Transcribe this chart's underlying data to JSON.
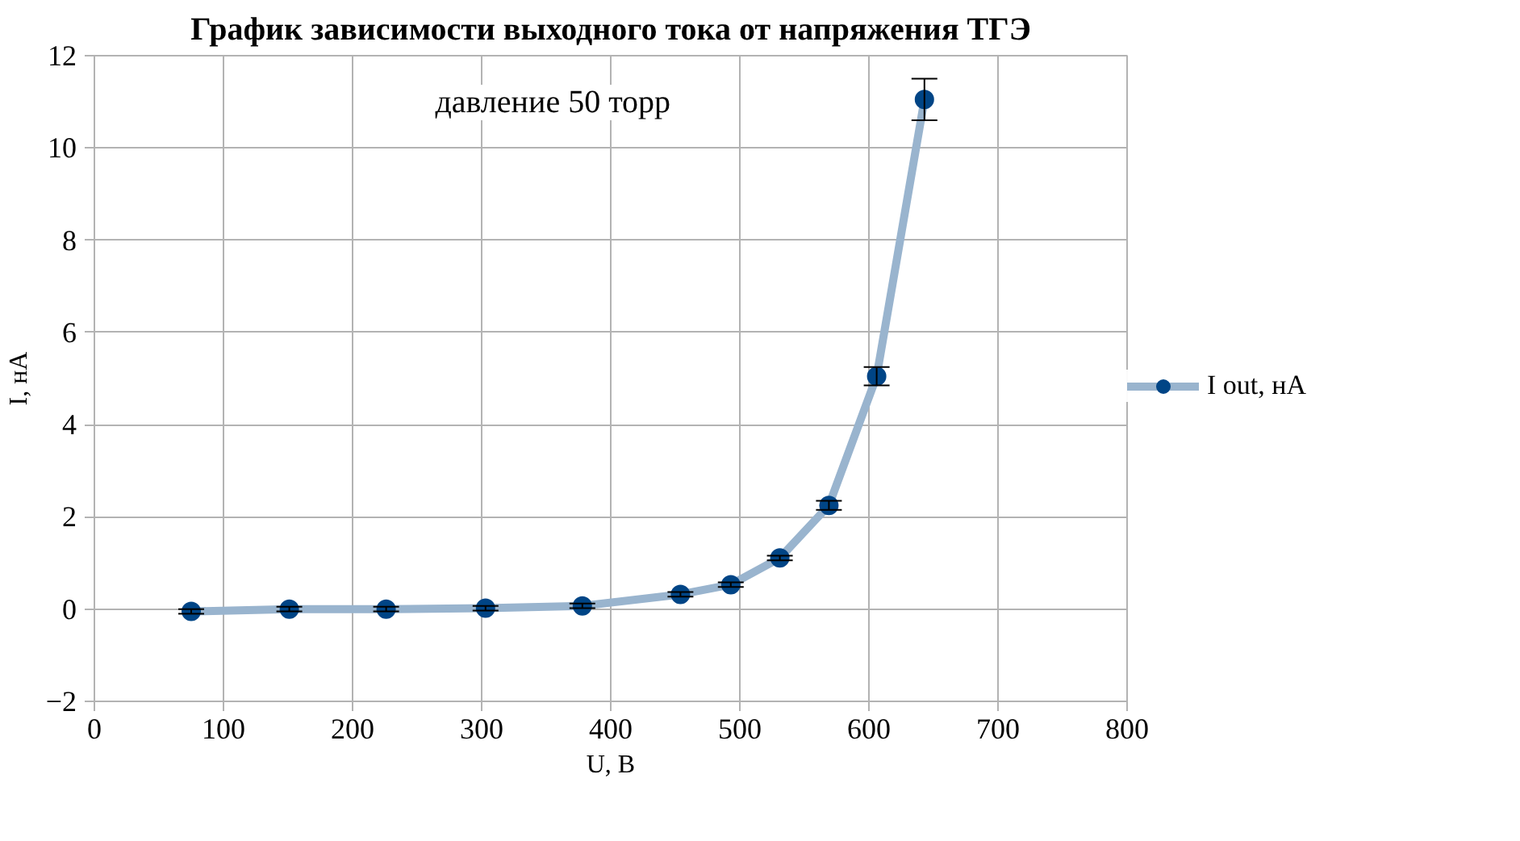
{
  "chart_data": {
    "type": "line",
    "marker": "circle",
    "title": "График зависимости выходного тока от напряжения ТГЭ",
    "xlabel": "U, В",
    "ylabel": "I, нА",
    "annotations": [
      "давление 50 торр"
    ],
    "x": [
      75,
      151,
      226,
      303,
      378,
      454,
      493,
      531,
      569,
      606,
      643
    ],
    "series": [
      {
        "name": "I out, нА",
        "color": "#004586",
        "line_style": "solid",
        "values": [
          -0.05,
          0.0,
          0.0,
          0.02,
          0.07,
          0.32,
          0.53,
          1.11,
          2.25,
          5.05,
          11.05
        ],
        "errors": [
          0.05,
          0.05,
          0.05,
          0.05,
          0.05,
          0.05,
          0.05,
          0.05,
          0.1,
          0.2,
          0.45
        ]
      }
    ],
    "xlim": [
      0,
      800
    ],
    "xticks": [
      0,
      100,
      200,
      300,
      400,
      500,
      600,
      700,
      800
    ],
    "ylim": [
      -2,
      12
    ],
    "yticks": [
      -2,
      0,
      2,
      4,
      6,
      8,
      10,
      12
    ],
    "grid": true,
    "legend": "right"
  }
}
